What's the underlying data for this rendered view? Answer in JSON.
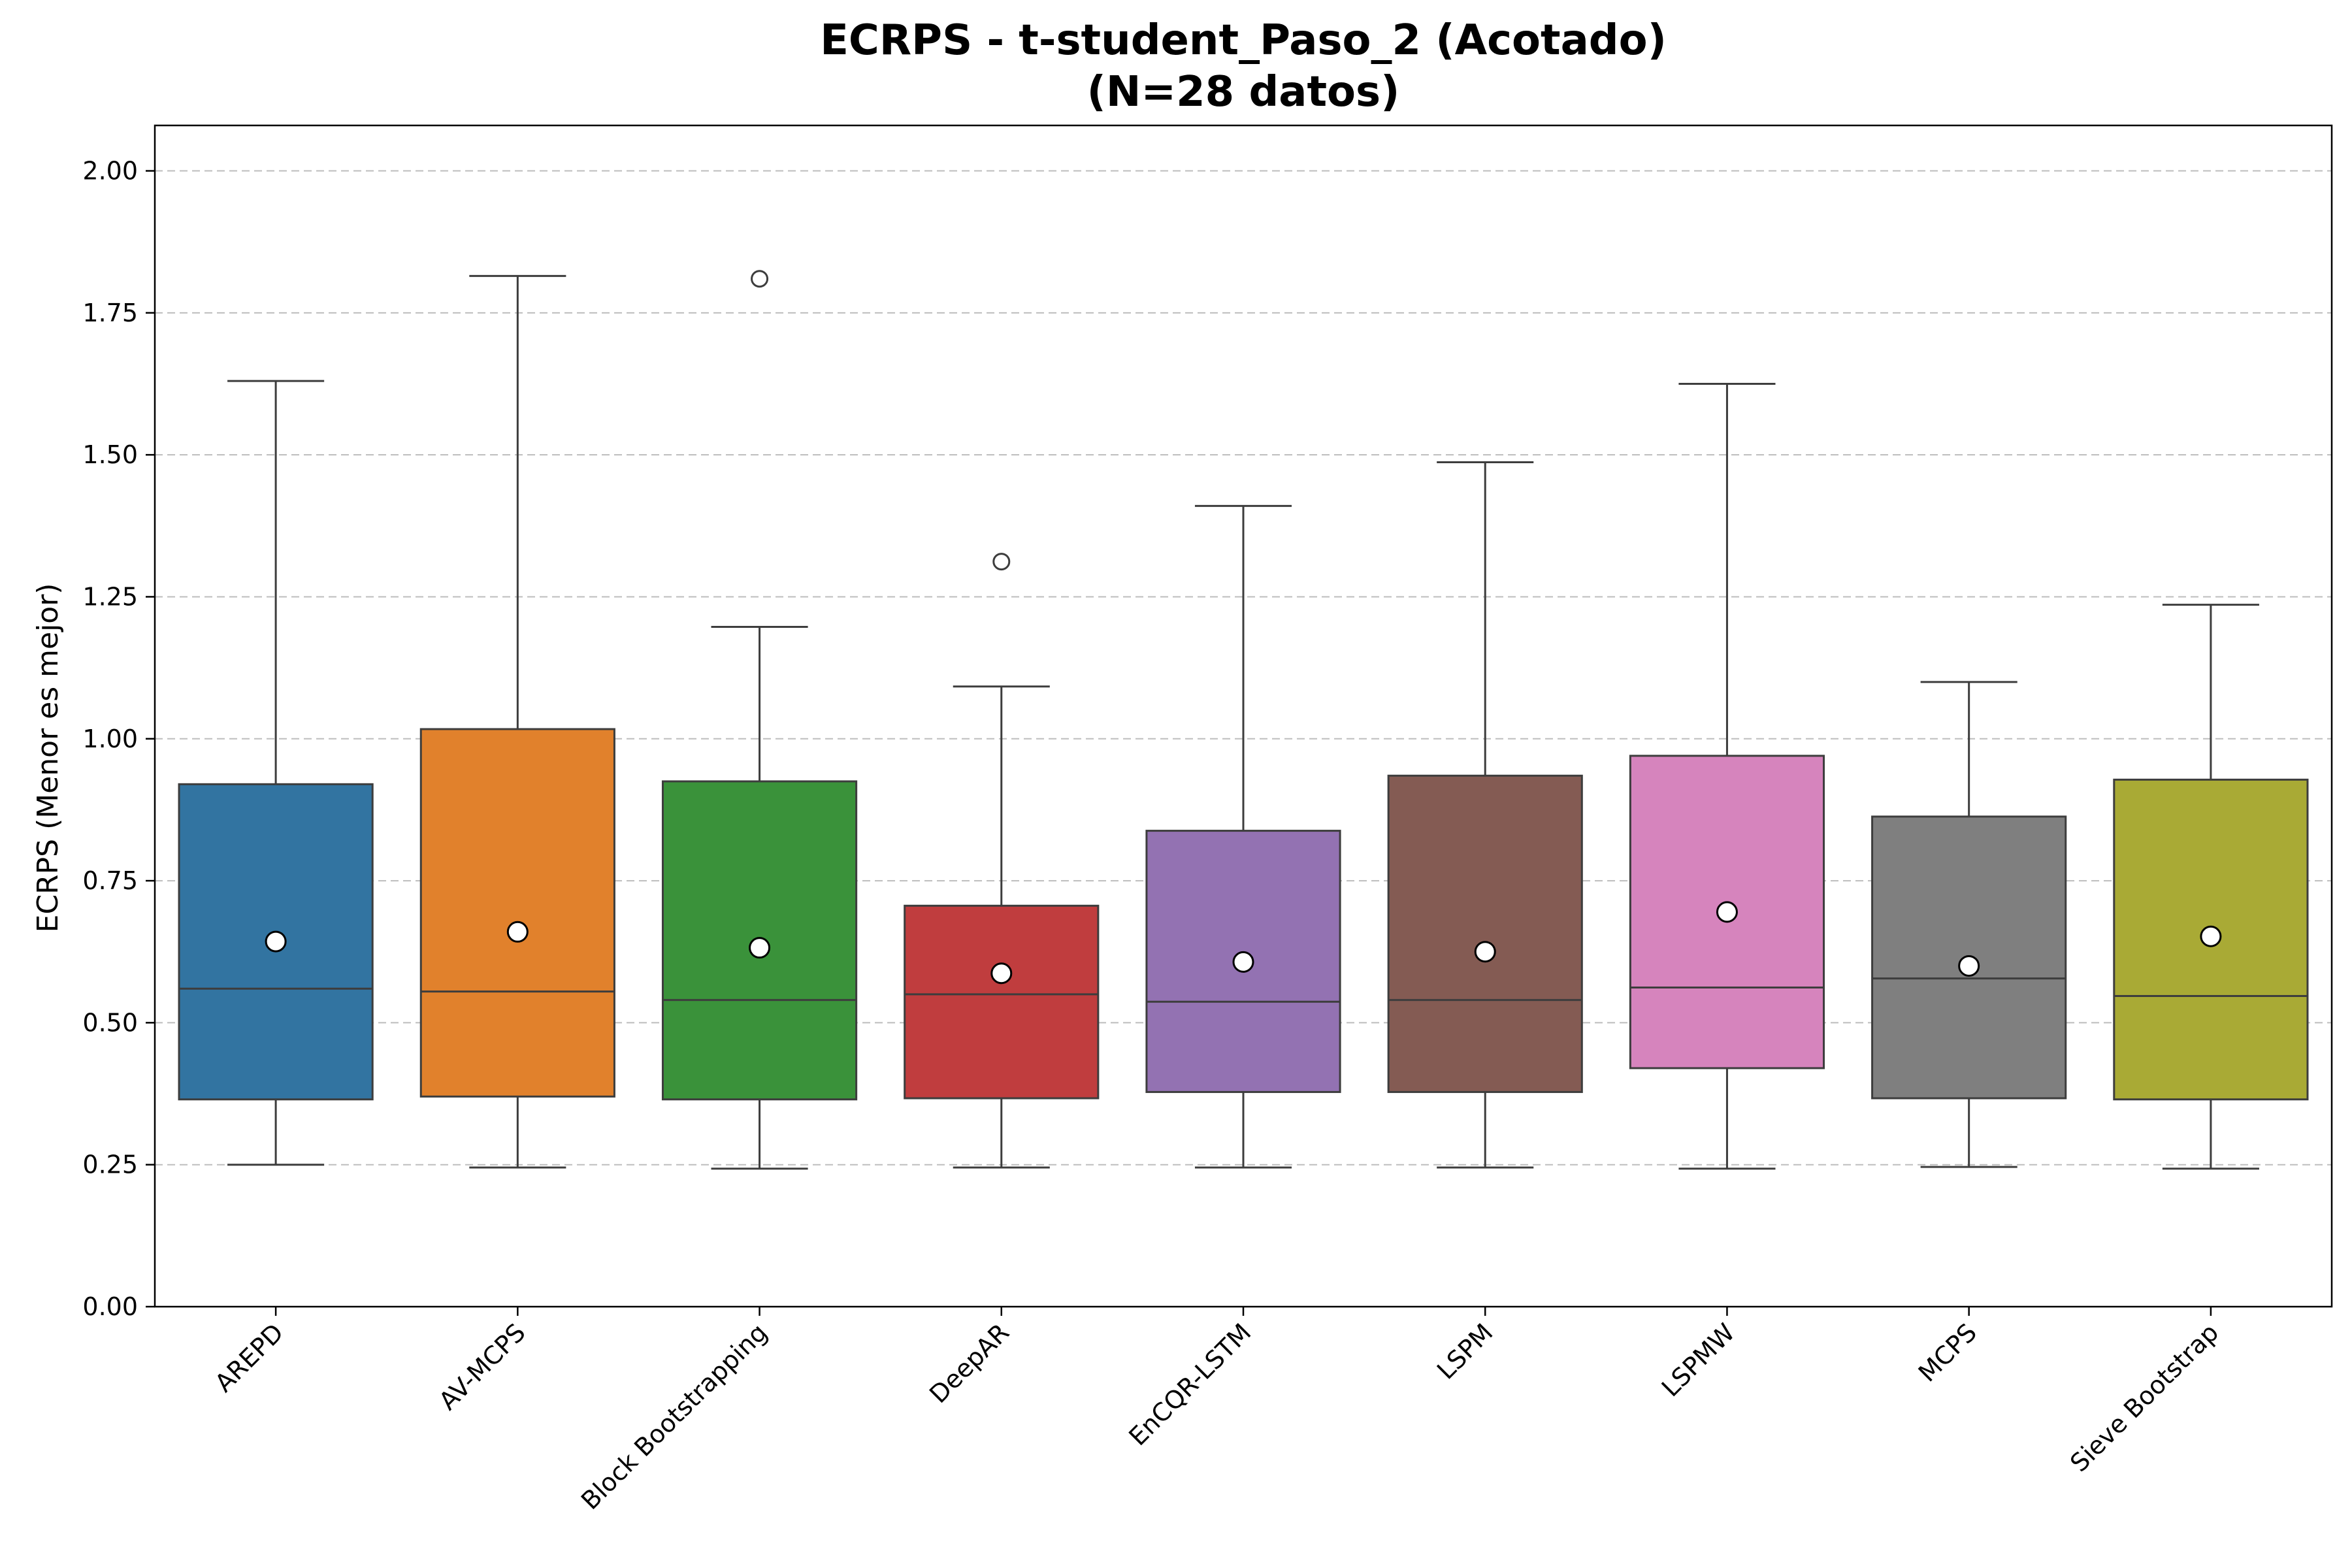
{
  "chart_data": {
    "type": "box",
    "title": "ECRPS - t-student_Paso_2 (Acotado)",
    "subtitle": "(N=28 datos)",
    "xlabel": "",
    "ylabel": "ECRPS (Menor es mejor)",
    "ylim": [
      0,
      2.08
    ],
    "yticks": [
      "0.00",
      "0.25",
      "0.50",
      "0.75",
      "1.00",
      "1.25",
      "1.50",
      "1.75",
      "2.00"
    ],
    "grid": "y-dashed",
    "categories": [
      "AREPD",
      "AV-MCPS",
      "Block Bootstrapping",
      "DeepAR",
      "EnCQR-LSTM",
      "LSPM",
      "LSPMW",
      "MCPS",
      "Sieve Bootstrap"
    ],
    "colors": [
      "#3274a1",
      "#e1812c",
      "#3a923a",
      "#c03d3e",
      "#9372b2",
      "#845b53",
      "#d684bd",
      "#7f7f7f",
      "#a9aa35"
    ],
    "boxes": [
      {
        "whisker_low": 0.25,
        "q1": 0.365,
        "median": 0.56,
        "q3": 0.92,
        "whisker_high": 1.63,
        "mean": 0.643,
        "outliers": []
      },
      {
        "whisker_low": 0.245,
        "q1": 0.37,
        "median": 0.555,
        "q3": 1.017,
        "whisker_high": 1.815,
        "mean": 0.66,
        "outliers": []
      },
      {
        "whisker_low": 0.243,
        "q1": 0.365,
        "median": 0.54,
        "q3": 0.925,
        "whisker_high": 1.197,
        "mean": 0.632,
        "outliers": [
          1.81
        ]
      },
      {
        "whisker_low": 0.245,
        "q1": 0.367,
        "median": 0.55,
        "q3": 0.706,
        "whisker_high": 1.092,
        "mean": 0.587,
        "outliers": [
          1.312
        ]
      },
      {
        "whisker_low": 0.245,
        "q1": 0.378,
        "median": 0.537,
        "q3": 0.838,
        "whisker_high": 1.41,
        "mean": 0.607,
        "outliers": []
      },
      {
        "whisker_low": 0.245,
        "q1": 0.378,
        "median": 0.54,
        "q3": 0.935,
        "whisker_high": 1.487,
        "mean": 0.625,
        "outliers": []
      },
      {
        "whisker_low": 0.243,
        "q1": 0.42,
        "median": 0.562,
        "q3": 0.97,
        "whisker_high": 1.625,
        "mean": 0.695,
        "outliers": []
      },
      {
        "whisker_low": 0.246,
        "q1": 0.367,
        "median": 0.578,
        "q3": 0.863,
        "whisker_high": 1.1,
        "mean": 0.6,
        "outliers": []
      },
      {
        "whisker_low": 0.243,
        "q1": 0.365,
        "median": 0.547,
        "q3": 0.928,
        "whisker_high": 1.236,
        "mean": 0.652,
        "outliers": []
      }
    ]
  }
}
